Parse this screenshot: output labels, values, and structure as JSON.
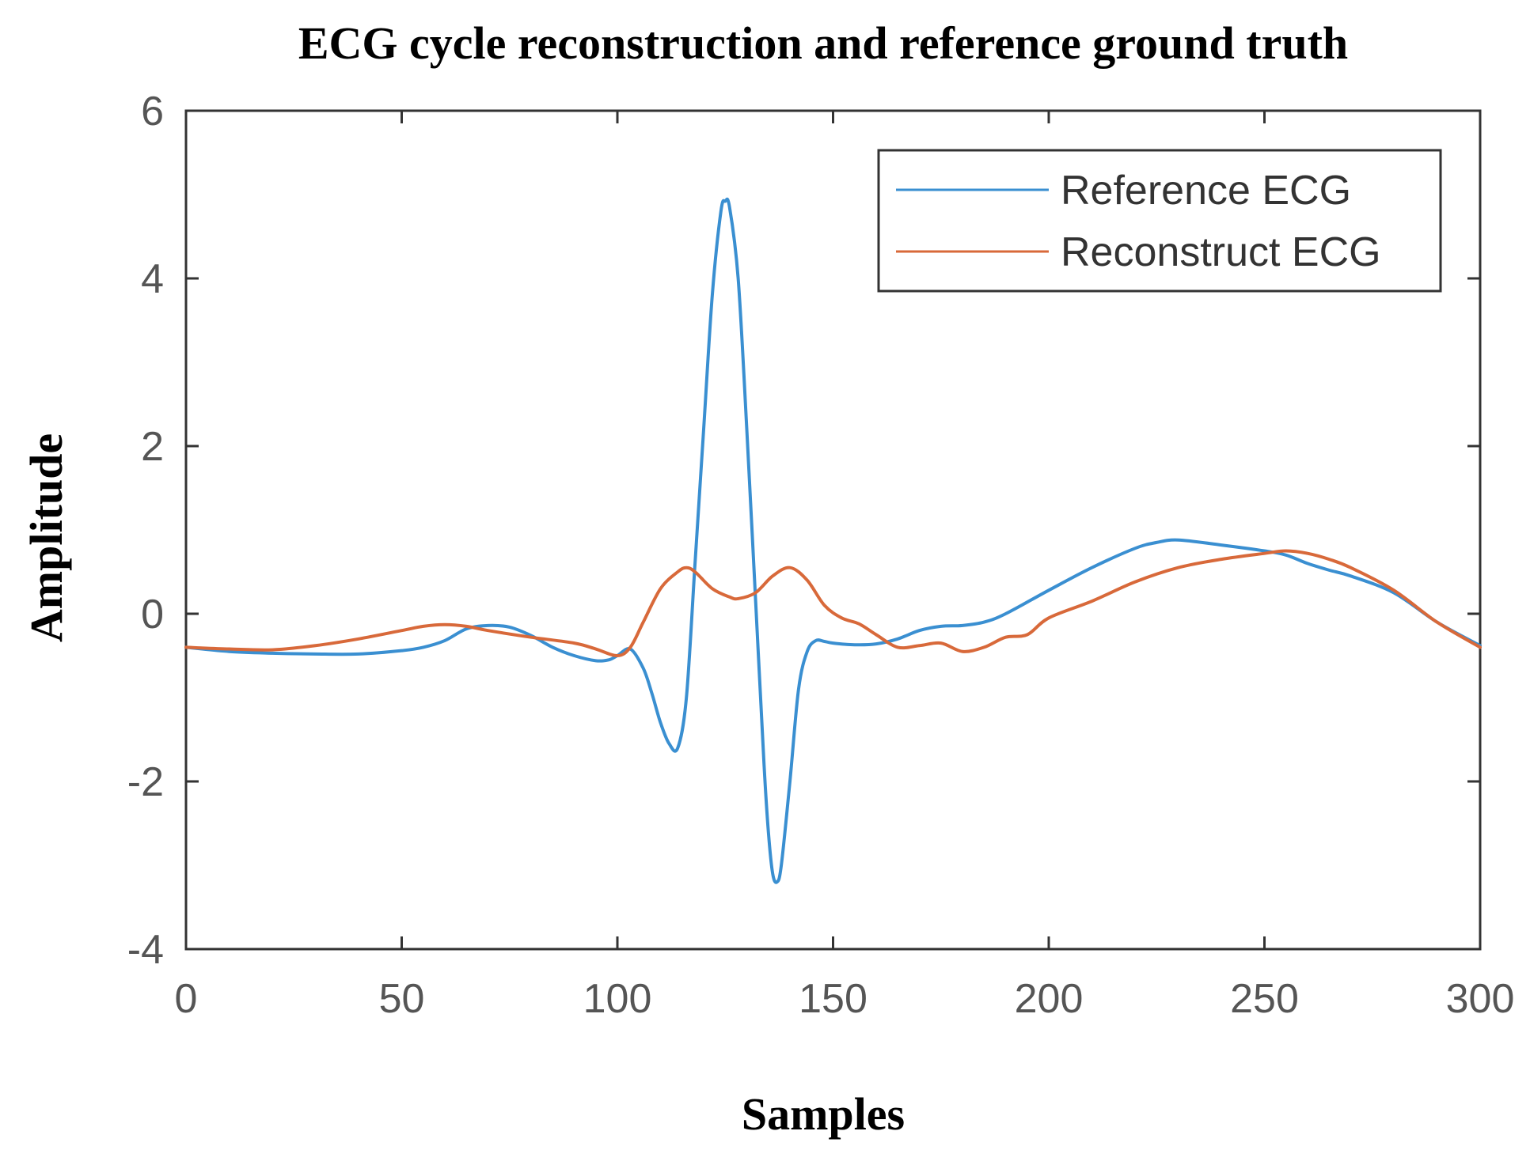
{
  "chart_data": {
    "type": "line",
    "title": "ECG cycle reconstruction and reference ground truth",
    "xlabel": "Samples",
    "ylabel": "Amplitude",
    "xlim": [
      0,
      300
    ],
    "ylim": [
      -4,
      6
    ],
    "xticks": [
      0,
      50,
      100,
      150,
      200,
      250,
      300
    ],
    "yticks": [
      -4,
      -2,
      0,
      2,
      4,
      6
    ],
    "grid": false,
    "legend_position": "top-right",
    "series": [
      {
        "name": "Reference ECG",
        "color": "#3a8fd1",
        "x": [
          0,
          10,
          20,
          30,
          40,
          50,
          55,
          60,
          65,
          70,
          75,
          80,
          85,
          90,
          95,
          98,
          100,
          103,
          106,
          108,
          110,
          112,
          114,
          116,
          118,
          120,
          122,
          124,
          125,
          126,
          128,
          130,
          132,
          134,
          135,
          136,
          137,
          138,
          140,
          142,
          144,
          146,
          148,
          150,
          155,
          160,
          165,
          170,
          175,
          180,
          185,
          190,
          200,
          210,
          220,
          225,
          230,
          240,
          250,
          255,
          260,
          265,
          270,
          280,
          290,
          300
        ],
        "y": [
          -0.4,
          -0.45,
          -0.47,
          -0.48,
          -0.48,
          -0.44,
          -0.4,
          -0.32,
          -0.18,
          -0.14,
          -0.16,
          -0.26,
          -0.4,
          -0.5,
          -0.56,
          -0.55,
          -0.5,
          -0.42,
          -0.65,
          -0.95,
          -1.3,
          -1.55,
          -1.6,
          -1.0,
          0.6,
          2.2,
          3.8,
          4.8,
          4.92,
          4.85,
          4.0,
          2.2,
          0.2,
          -1.8,
          -2.6,
          -3.1,
          -3.2,
          -3.0,
          -2.0,
          -0.9,
          -0.45,
          -0.32,
          -0.33,
          -0.35,
          -0.37,
          -0.36,
          -0.3,
          -0.2,
          -0.15,
          -0.14,
          -0.1,
          0.0,
          0.28,
          0.55,
          0.78,
          0.85,
          0.88,
          0.82,
          0.75,
          0.7,
          0.6,
          0.52,
          0.45,
          0.25,
          -0.1,
          -0.38
        ]
      },
      {
        "name": "Reconstruct ECG",
        "color": "#d8693a",
        "x": [
          0,
          10,
          20,
          30,
          40,
          50,
          55,
          60,
          65,
          70,
          80,
          90,
          95,
          100,
          103,
          106,
          110,
          114,
          116,
          118,
          122,
          126,
          128,
          132,
          136,
          140,
          144,
          148,
          152,
          156,
          160,
          165,
          170,
          175,
          180,
          185,
          190,
          195,
          200,
          210,
          220,
          230,
          240,
          250,
          255,
          260,
          265,
          270,
          280,
          290,
          300
        ],
        "y": [
          -0.4,
          -0.42,
          -0.43,
          -0.38,
          -0.3,
          -0.2,
          -0.15,
          -0.13,
          -0.15,
          -0.2,
          -0.28,
          -0.35,
          -0.42,
          -0.5,
          -0.4,
          -0.1,
          0.3,
          0.5,
          0.55,
          0.5,
          0.3,
          0.2,
          0.18,
          0.25,
          0.45,
          0.55,
          0.4,
          0.1,
          -0.05,
          -0.12,
          -0.25,
          -0.4,
          -0.38,
          -0.35,
          -0.45,
          -0.4,
          -0.28,
          -0.25,
          -0.05,
          0.15,
          0.38,
          0.55,
          0.65,
          0.72,
          0.75,
          0.72,
          0.65,
          0.55,
          0.28,
          -0.1,
          -0.4
        ]
      }
    ]
  }
}
